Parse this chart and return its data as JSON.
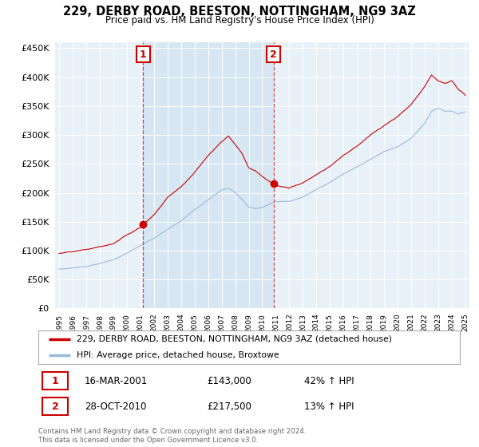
{
  "title": "229, DERBY ROAD, BEESTON, NOTTINGHAM, NG9 3AZ",
  "subtitle": "Price paid vs. HM Land Registry's House Price Index (HPI)",
  "legend_line1": "229, DERBY ROAD, BEESTON, NOTTINGHAM, NG9 3AZ (detached house)",
  "legend_line2": "HPI: Average price, detached house, Broxtowe",
  "footnote": "Contains HM Land Registry data © Crown copyright and database right 2024.\nThis data is licensed under the Open Government Licence v3.0.",
  "marker1_label": "1",
  "marker1_date": "16-MAR-2001",
  "marker1_price": 143000,
  "marker1_price_str": "£143,000",
  "marker1_hpi": "42% ↑ HPI",
  "marker1_year": 2001.21,
  "marker1_value": 143000,
  "marker2_label": "2",
  "marker2_date": "28-OCT-2010",
  "marker2_price": 217500,
  "marker2_price_str": "£217,500",
  "marker2_hpi": "13% ↑ HPI",
  "marker2_year": 2010.83,
  "marker2_value": 217500,
  "red_color": "#cc0000",
  "blue_color": "#99bbdd",
  "shade_color": "#cce0f0",
  "bg_color": "#e8f0f8",
  "ylim": [
    0,
    460000
  ],
  "yticks": [
    0,
    50000,
    100000,
    150000,
    200000,
    250000,
    300000,
    350000,
    400000,
    450000
  ],
  "year_start": 1995,
  "year_end": 2025,
  "red_keys_t": [
    1995.0,
    1996.0,
    1997.0,
    1998.0,
    1999.0,
    2000.0,
    2001.0,
    2001.21,
    2002.0,
    2003.0,
    2004.0,
    2005.0,
    2006.0,
    2007.0,
    2007.5,
    2008.0,
    2008.5,
    2009.0,
    2009.5,
    2010.0,
    2010.83,
    2011.0,
    2012.0,
    2013.0,
    2014.0,
    2015.0,
    2016.0,
    2017.0,
    2018.0,
    2019.0,
    2020.0,
    2021.0,
    2022.0,
    2022.5,
    2023.0,
    2023.5,
    2024.0,
    2024.5,
    2025.0
  ],
  "red_keys_v": [
    95000,
    97000,
    100000,
    105000,
    110000,
    125000,
    138000,
    143000,
    160000,
    190000,
    210000,
    235000,
    265000,
    290000,
    300000,
    285000,
    270000,
    245000,
    240000,
    230000,
    217500,
    215000,
    210000,
    220000,
    235000,
    250000,
    270000,
    285000,
    305000,
    320000,
    335000,
    355000,
    385000,
    405000,
    395000,
    390000,
    395000,
    380000,
    370000
  ],
  "blue_keys_t": [
    1995.0,
    1996.0,
    1997.0,
    1998.0,
    1999.0,
    2000.0,
    2001.0,
    2002.0,
    2003.0,
    2004.0,
    2005.0,
    2006.0,
    2007.0,
    2007.5,
    2008.0,
    2008.5,
    2009.0,
    2009.5,
    2010.0,
    2011.0,
    2012.0,
    2013.0,
    2014.0,
    2015.0,
    2016.0,
    2017.0,
    2018.0,
    2019.0,
    2020.0,
    2021.0,
    2022.0,
    2022.5,
    2023.0,
    2023.5,
    2024.0,
    2024.5,
    2025.0
  ],
  "blue_keys_v": [
    68000,
    70000,
    73000,
    78000,
    84000,
    95000,
    108000,
    120000,
    135000,
    150000,
    170000,
    188000,
    205000,
    208000,
    200000,
    188000,
    175000,
    172000,
    175000,
    185000,
    185000,
    192000,
    205000,
    218000,
    232000,
    245000,
    258000,
    272000,
    280000,
    295000,
    320000,
    340000,
    345000,
    340000,
    340000,
    335000,
    340000
  ]
}
